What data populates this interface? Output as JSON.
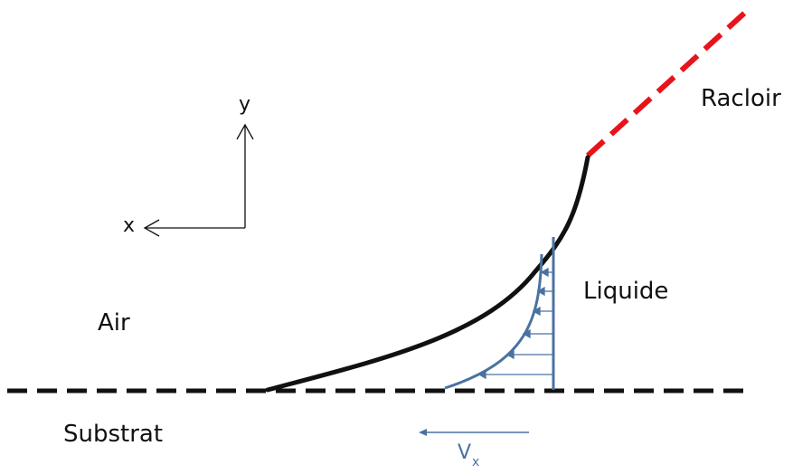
{
  "labels": {
    "y_axis": "y",
    "x_axis": "x",
    "racloir": "Racloir",
    "liquide": "Liquide",
    "air": "Air",
    "substrat": "Substrat",
    "vx_main": "V",
    "vx_sub": "x"
  },
  "colors": {
    "ink": "#111111",
    "blade": "#e8141b",
    "profile": "#4a72a0"
  },
  "icons": {
    "axis_arrow": "chevron-arrowhead",
    "velocity_arrow": "filled-arrowhead"
  }
}
